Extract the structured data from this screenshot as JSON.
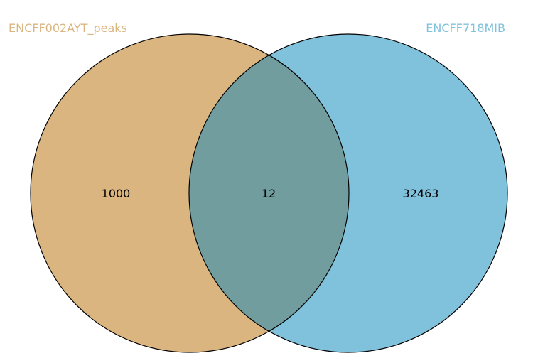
{
  "diagram": {
    "type": "venn",
    "sets": [
      {
        "name": "ENCFF002AYT_peaks",
        "color": "#dbb57f",
        "label_color": "#dbb57f"
      },
      {
        "name": "ENCFF718MIB",
        "color": "#80c1dc",
        "label_color": "#80c1dc"
      }
    ],
    "intersection_color": "#719d9e",
    "outline_color": "#000000",
    "counts": {
      "left_only": "1000",
      "both": "12",
      "right_only": "32463"
    }
  }
}
